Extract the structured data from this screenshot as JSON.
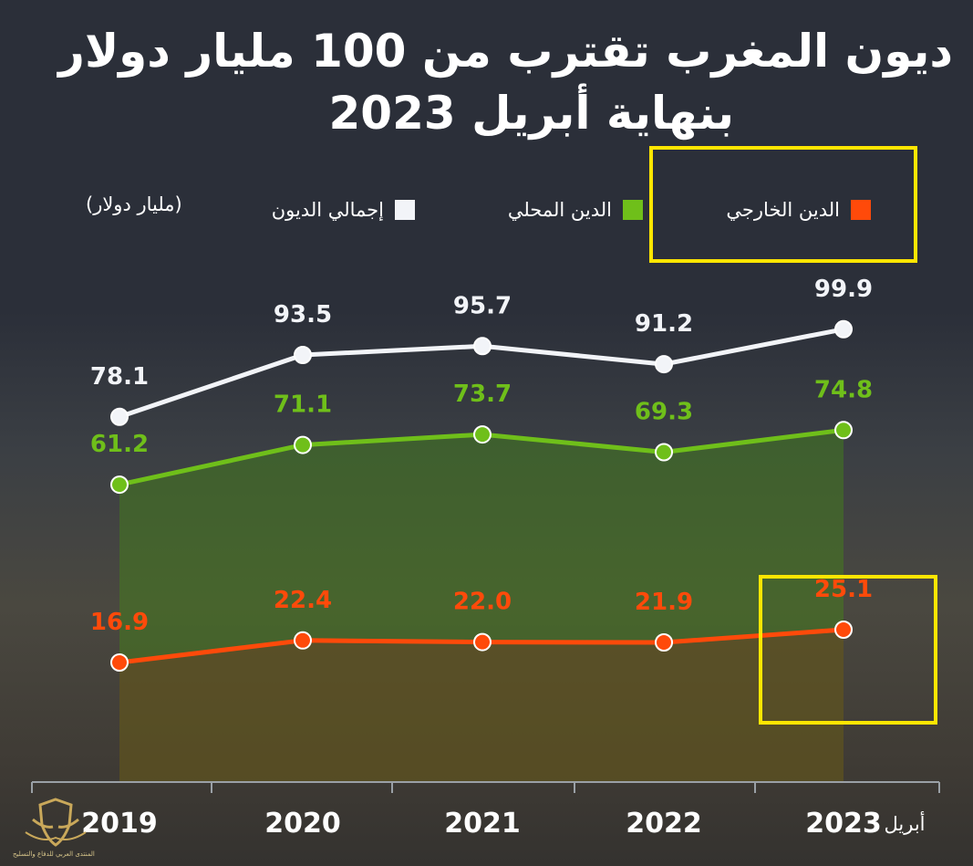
{
  "title_lines": [
    "ديون المغرب تقترب من 100 مليار دولار",
    "بنهاية أبريل 2023"
  ],
  "legend": {
    "external": "الدين الخارجي",
    "domestic": "الدين المحلي",
    "total": "إجمالي الديون",
    "unit": "(مليار دولار)"
  },
  "colors": {
    "total": "#f2f4f8",
    "domestic": "#6fbf1a",
    "external": "#ff4a0a",
    "highlight": "#ffe600",
    "axis": "#9aa0a6",
    "domestic_fill": "rgba(70,140,20,0.42)",
    "external_fill": "rgba(120,50,35,0.38)"
  },
  "chart_data": {
    "type": "line",
    "categories": [
      "2019",
      "2020",
      "2021",
      "2022",
      "2023"
    ],
    "last_category_prefix": "أبريل",
    "series": [
      {
        "name": "إجمالي الديون",
        "key": "total",
        "values": [
          78.1,
          93.5,
          95.7,
          91.2,
          99.9
        ],
        "labels": [
          "78.1",
          "93.5",
          "95.7",
          "91.2",
          "99.9"
        ]
      },
      {
        "name": "الدين المحلي",
        "key": "domestic",
        "values": [
          61.2,
          71.1,
          73.7,
          69.3,
          74.8
        ],
        "labels": [
          "61.2",
          "71.1",
          "73.7",
          "69.3",
          "74.8"
        ]
      },
      {
        "name": "الدين الخارجي",
        "key": "external",
        "values": [
          16.9,
          22.4,
          22.0,
          21.9,
          25.1
        ],
        "labels": [
          "16.9",
          "22.4",
          "22.0",
          "21.9",
          "25.1"
        ]
      }
    ],
    "grid": false
  },
  "watermark": {
    "text": "المنتدى العربي للدفاع والتسليح",
    "icon": "eagle-shield-logo"
  }
}
